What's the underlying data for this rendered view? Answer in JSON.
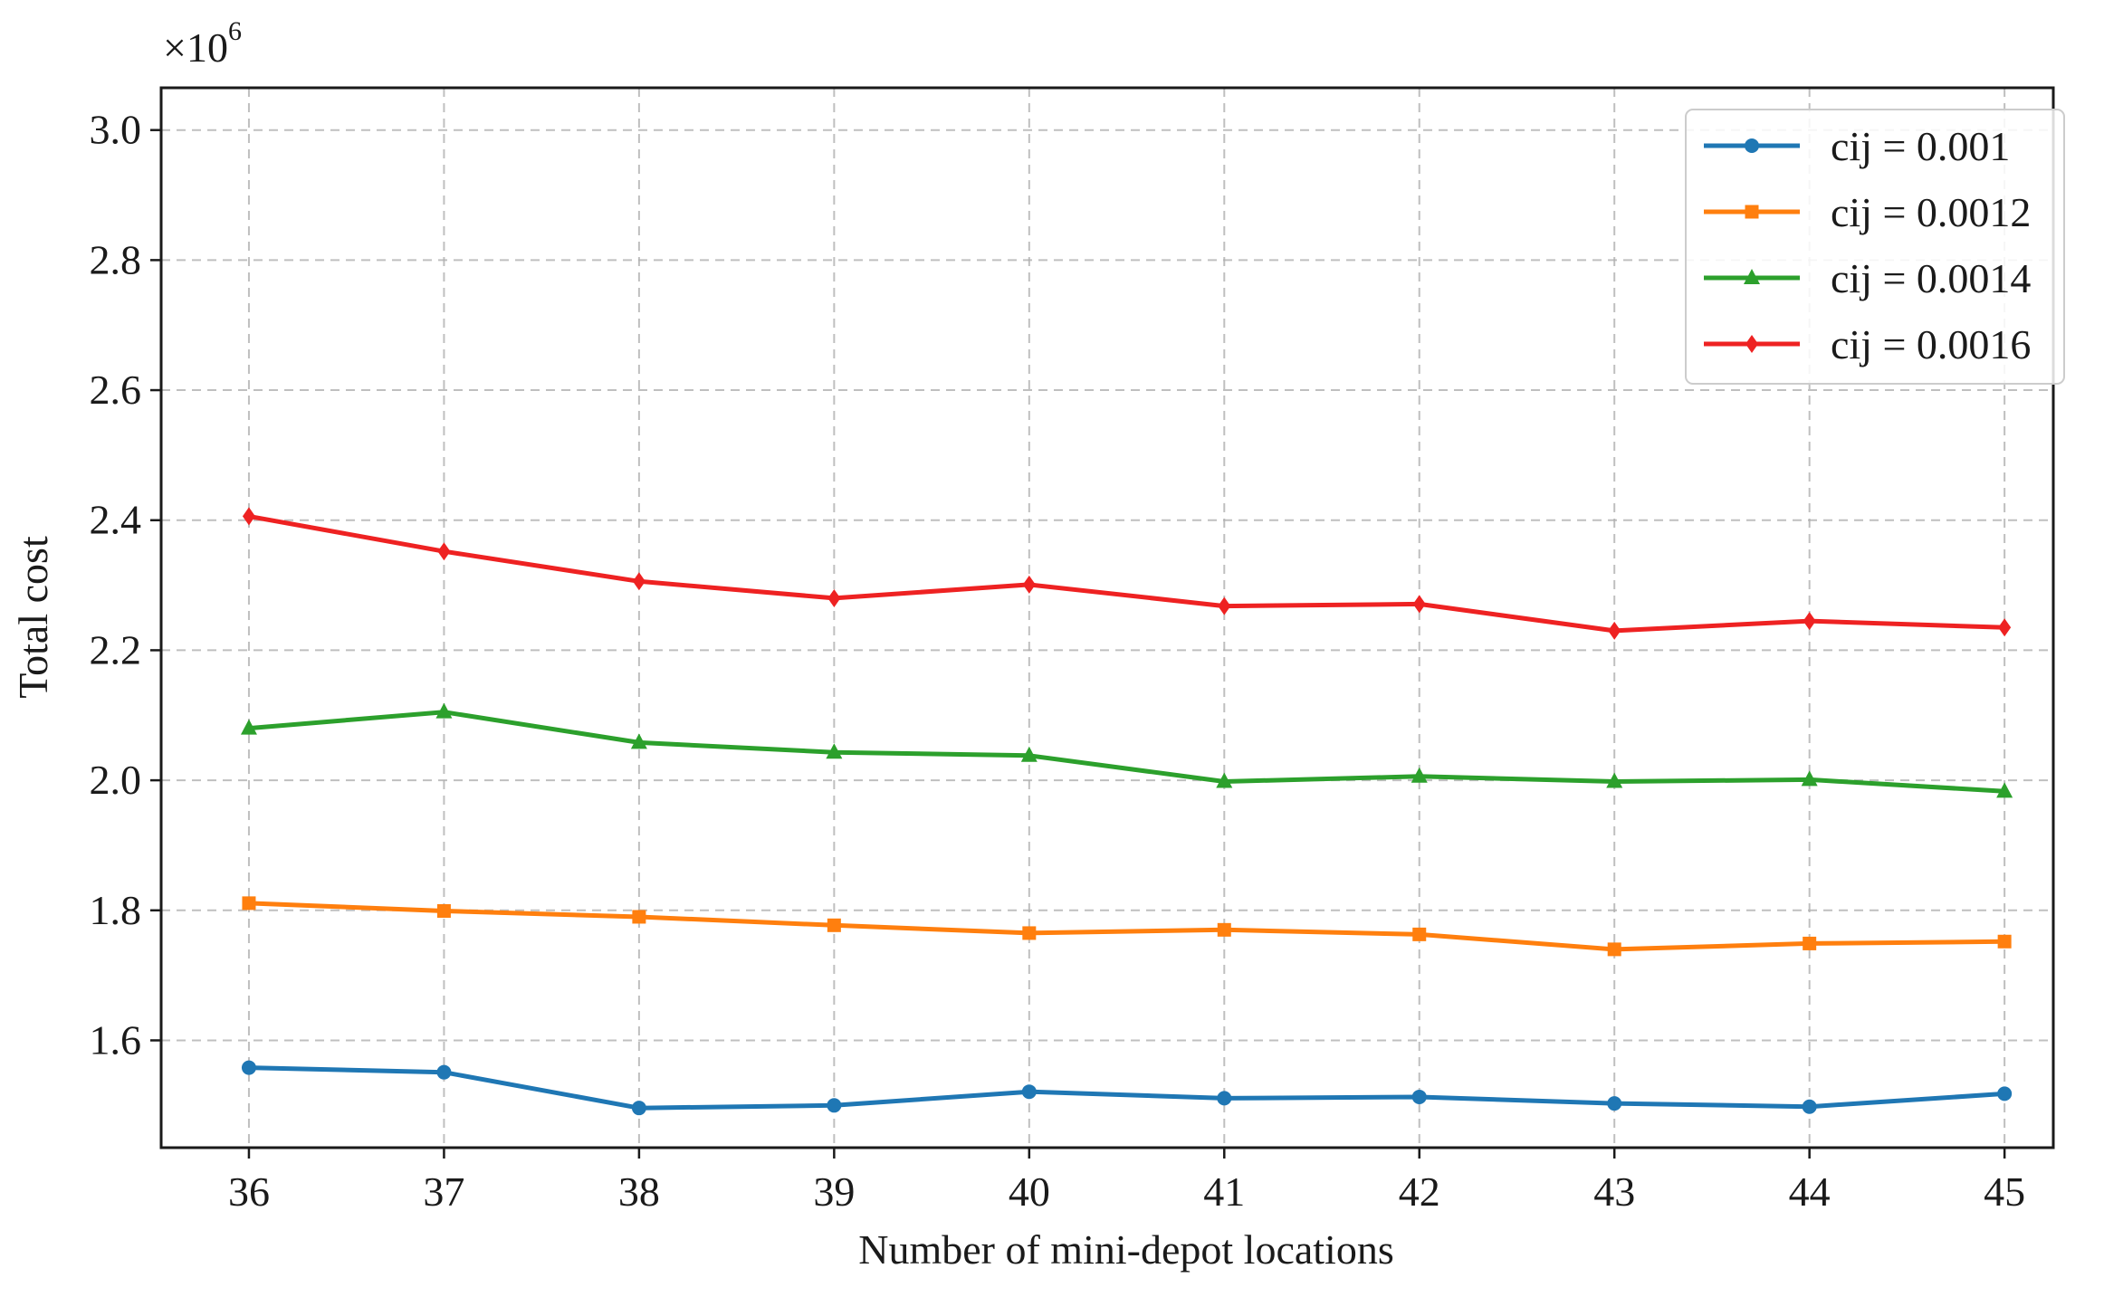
{
  "chart_data": {
    "type": "line",
    "xlabel": "Number of mini-depot locations",
    "ylabel": "Total cost",
    "y_scale_label": {
      "prefix": "×10",
      "exponent": "6"
    },
    "x": [
      36,
      37,
      38,
      39,
      40,
      41,
      42,
      43,
      44,
      45
    ],
    "xlim": [
      35.55,
      45.25
    ],
    "ylim": [
      1.435,
      3.065
    ],
    "yticks": [
      1.6,
      1.8,
      2.0,
      2.2,
      2.4,
      2.6,
      2.8,
      3.0
    ],
    "ytick_labels": [
      "1.6",
      "1.8",
      "2.0",
      "2.2",
      "2.4",
      "2.6",
      "2.8",
      "3.0"
    ],
    "xtick_labels": [
      "36",
      "37",
      "38",
      "39",
      "40",
      "41",
      "42",
      "43",
      "44",
      "45"
    ],
    "grid": true,
    "legend_position": "top-right",
    "series": [
      {
        "name": "cij = 0.001",
        "color": "#1f77b4",
        "marker": "circle",
        "values": [
          1.558,
          1.551,
          1.496,
          1.5,
          1.521,
          1.511,
          1.513,
          1.503,
          1.498,
          1.518
        ]
      },
      {
        "name": "cij = 0.0012",
        "color": "#ff7f0e",
        "marker": "square",
        "values": [
          1.811,
          1.799,
          1.79,
          1.777,
          1.765,
          1.77,
          1.763,
          1.74,
          1.749,
          1.752
        ]
      },
      {
        "name": "cij = 0.0014",
        "color": "#2ca02c",
        "marker": "triangle",
        "values": [
          2.08,
          2.105,
          2.058,
          2.043,
          2.038,
          1.998,
          2.006,
          1.998,
          2.001,
          1.983
        ]
      },
      {
        "name": "cij = 0.0016",
        "color": "#ee2222",
        "marker": "diamond",
        "values": [
          2.406,
          2.352,
          2.306,
          2.28,
          2.301,
          2.268,
          2.271,
          2.23,
          2.245,
          2.235
        ]
      }
    ]
  }
}
